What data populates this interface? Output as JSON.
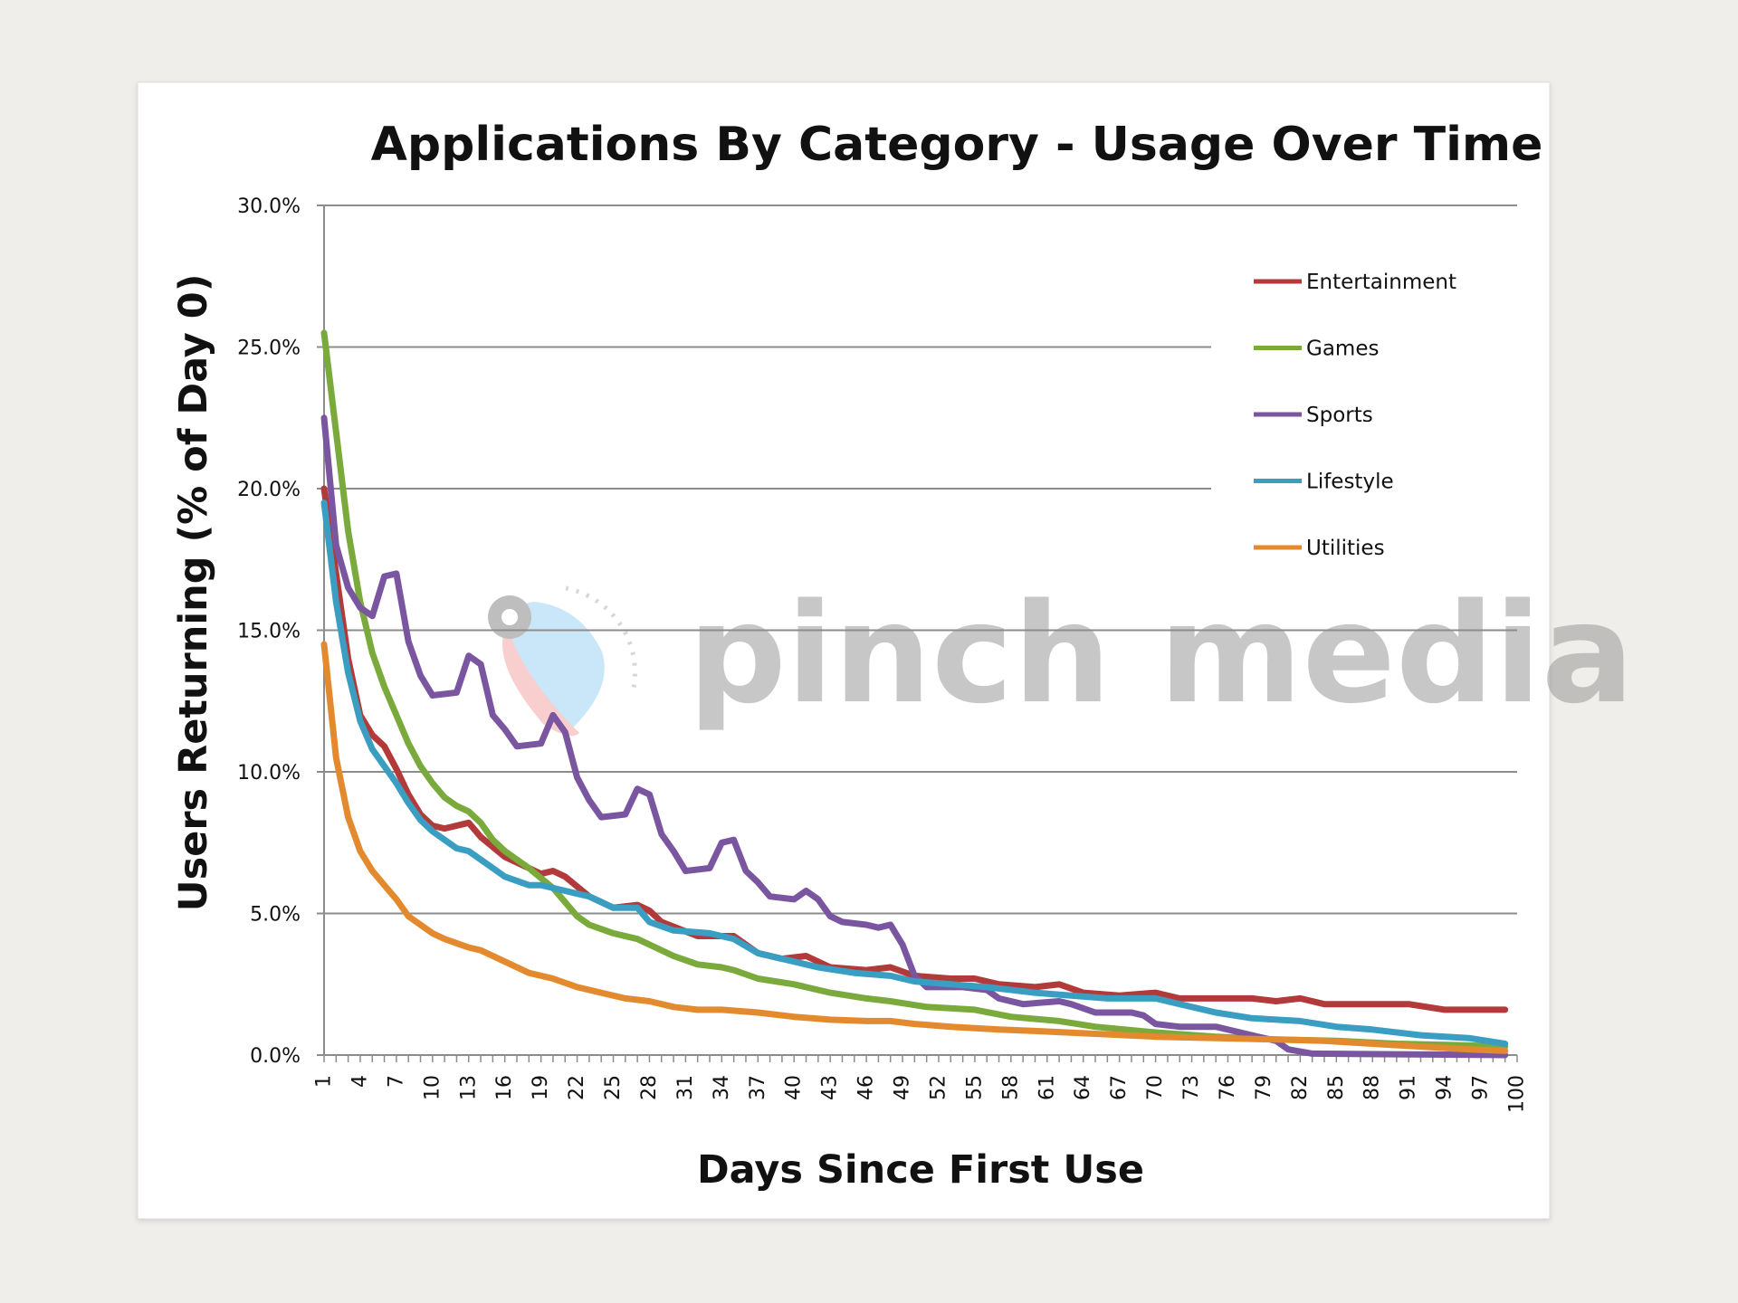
{
  "chart_data": {
    "type": "line",
    "title": "Applications By Category - Usage Over Time",
    "xlabel": "Days Since First Use",
    "ylabel": "Users Returning (% of Day 0)",
    "ylim": [
      0,
      30
    ],
    "yticks": [
      0,
      5,
      10,
      15,
      20,
      25,
      30
    ],
    "ytick_format": "percent_1dp",
    "xlim": [
      1,
      100
    ],
    "xtick_labels": [
      1,
      4,
      7,
      10,
      13,
      16,
      19,
      22,
      25,
      28,
      31,
      34,
      37,
      40,
      43,
      46,
      49,
      52,
      55,
      58,
      61,
      64,
      67,
      70,
      73,
      76,
      79,
      82,
      85,
      88,
      91,
      94,
      97,
      100
    ],
    "grid": true,
    "legend_position": "top-right",
    "watermark": "pinch media",
    "series": [
      {
        "name": "Entertainment",
        "color": "#b33a3a",
        "points": [
          [
            1,
            20
          ],
          [
            2,
            17
          ],
          [
            3,
            14
          ],
          [
            4,
            12
          ],
          [
            5,
            11.3
          ],
          [
            6,
            10.9
          ],
          [
            7,
            10.1
          ],
          [
            8,
            9.2
          ],
          [
            9,
            8.5
          ],
          [
            10,
            8.1
          ],
          [
            11,
            8
          ],
          [
            12,
            8.1
          ],
          [
            13,
            8.2
          ],
          [
            14,
            7.7
          ],
          [
            16,
            7
          ],
          [
            19,
            6.4
          ],
          [
            20,
            6.5
          ],
          [
            21,
            6.3
          ],
          [
            23,
            5.6
          ],
          [
            25,
            5.2
          ],
          [
            27,
            5.3
          ],
          [
            28,
            5.1
          ],
          [
            29,
            4.7
          ],
          [
            32,
            4.2
          ],
          [
            35,
            4.2
          ],
          [
            37,
            3.6
          ],
          [
            39,
            3.4
          ],
          [
            41,
            3.5
          ],
          [
            43,
            3.1
          ],
          [
            46,
            3
          ],
          [
            48,
            3.1
          ],
          [
            50,
            2.8
          ],
          [
            53,
            2.7
          ],
          [
            55,
            2.7
          ],
          [
            57,
            2.5
          ],
          [
            60,
            2.4
          ],
          [
            62,
            2.5
          ],
          [
            64,
            2.2
          ],
          [
            67,
            2.1
          ],
          [
            70,
            2.2
          ],
          [
            72,
            2
          ],
          [
            76,
            2
          ],
          [
            78,
            2
          ],
          [
            80,
            1.9
          ],
          [
            82,
            2
          ],
          [
            84,
            1.8
          ],
          [
            88,
            1.8
          ],
          [
            91,
            1.8
          ],
          [
            94,
            1.6
          ],
          [
            97,
            1.6
          ],
          [
            99,
            1.6
          ]
        ]
      },
      {
        "name": "Games",
        "color": "#7aaa3c",
        "points": [
          [
            1,
            25.5
          ],
          [
            2,
            22
          ],
          [
            3,
            18.5
          ],
          [
            4,
            16
          ],
          [
            5,
            14.2
          ],
          [
            6,
            13
          ],
          [
            7,
            12
          ],
          [
            8,
            11
          ],
          [
            9,
            10.2
          ],
          [
            10,
            9.6
          ],
          [
            11,
            9.1
          ],
          [
            12,
            8.8
          ],
          [
            13,
            8.6
          ],
          [
            14,
            8.2
          ],
          [
            15,
            7.6
          ],
          [
            16,
            7.2
          ],
          [
            18,
            6.6
          ],
          [
            20,
            5.9
          ],
          [
            21,
            5.4
          ],
          [
            22,
            4.9
          ],
          [
            23,
            4.6
          ],
          [
            25,
            4.3
          ],
          [
            27,
            4.1
          ],
          [
            28,
            3.9
          ],
          [
            30,
            3.5
          ],
          [
            32,
            3.2
          ],
          [
            34,
            3.1
          ],
          [
            35,
            3
          ],
          [
            37,
            2.7
          ],
          [
            40,
            2.5
          ],
          [
            43,
            2.2
          ],
          [
            46,
            2
          ],
          [
            48,
            1.9
          ],
          [
            51,
            1.7
          ],
          [
            55,
            1.6
          ],
          [
            58,
            1.35
          ],
          [
            62,
            1.2
          ],
          [
            65,
            1
          ],
          [
            70,
            0.8
          ],
          [
            75,
            0.65
          ],
          [
            80,
            0.55
          ],
          [
            85,
            0.5
          ],
          [
            90,
            0.4
          ],
          [
            95,
            0.35
          ],
          [
            99,
            0.3
          ]
        ]
      },
      {
        "name": "Sports",
        "color": "#7a55a0",
        "points": [
          [
            1,
            22.5
          ],
          [
            2,
            18
          ],
          [
            3,
            16.5
          ],
          [
            4,
            15.8
          ],
          [
            5,
            15.5
          ],
          [
            6,
            16.9
          ],
          [
            7,
            17
          ],
          [
            8,
            14.6
          ],
          [
            9,
            13.4
          ],
          [
            10,
            12.7
          ],
          [
            12,
            12.8
          ],
          [
            13,
            14.1
          ],
          [
            14,
            13.8
          ],
          [
            15,
            12
          ],
          [
            16,
            11.5
          ],
          [
            17,
            10.9
          ],
          [
            19,
            11
          ],
          [
            20,
            12
          ],
          [
            21,
            11.4
          ],
          [
            22,
            9.8
          ],
          [
            23,
            9
          ],
          [
            24,
            8.4
          ],
          [
            26,
            8.5
          ],
          [
            27,
            9.4
          ],
          [
            28,
            9.2
          ],
          [
            29,
            7.8
          ],
          [
            30,
            7.2
          ],
          [
            31,
            6.5
          ],
          [
            33,
            6.6
          ],
          [
            34,
            7.5
          ],
          [
            35,
            7.6
          ],
          [
            36,
            6.5
          ],
          [
            37,
            6.1
          ],
          [
            38,
            5.6
          ],
          [
            40,
            5.5
          ],
          [
            41,
            5.8
          ],
          [
            42,
            5.5
          ],
          [
            43,
            4.9
          ],
          [
            44,
            4.7
          ],
          [
            46,
            4.6
          ],
          [
            47,
            4.5
          ],
          [
            48,
            4.6
          ],
          [
            49,
            3.9
          ],
          [
            50,
            2.8
          ],
          [
            51,
            2.4
          ],
          [
            53,
            2.4
          ],
          [
            54,
            2.4
          ],
          [
            56,
            2.3
          ],
          [
            57,
            2
          ],
          [
            59,
            1.8
          ],
          [
            62,
            1.9
          ],
          [
            63,
            1.8
          ],
          [
            65,
            1.5
          ],
          [
            68,
            1.5
          ],
          [
            69,
            1.4
          ],
          [
            70,
            1.1
          ],
          [
            72,
            1
          ],
          [
            75,
            1
          ],
          [
            78,
            0.7
          ],
          [
            80,
            0.5
          ],
          [
            81,
            0.2
          ],
          [
            83,
            0.05
          ],
          [
            99,
            0
          ]
        ]
      },
      {
        "name": "Lifestyle",
        "color": "#3a9ec2",
        "points": [
          [
            1,
            19.5
          ],
          [
            2,
            16
          ],
          [
            3,
            13.5
          ],
          [
            4,
            11.8
          ],
          [
            5,
            10.8
          ],
          [
            6,
            10.2
          ],
          [
            7,
            9.6
          ],
          [
            8,
            8.9
          ],
          [
            9,
            8.3
          ],
          [
            10,
            7.9
          ],
          [
            11,
            7.6
          ],
          [
            12,
            7.3
          ],
          [
            13,
            7.2
          ],
          [
            14,
            6.9
          ],
          [
            15,
            6.6
          ],
          [
            16,
            6.3
          ],
          [
            18,
            6
          ],
          [
            19,
            6
          ],
          [
            21,
            5.8
          ],
          [
            23,
            5.6
          ],
          [
            25,
            5.2
          ],
          [
            27,
            5.2
          ],
          [
            28,
            4.7
          ],
          [
            30,
            4.4
          ],
          [
            33,
            4.3
          ],
          [
            35,
            4.1
          ],
          [
            37,
            3.6
          ],
          [
            40,
            3.3
          ],
          [
            42,
            3.1
          ],
          [
            45,
            2.9
          ],
          [
            48,
            2.8
          ],
          [
            50,
            2.6
          ],
          [
            53,
            2.5
          ],
          [
            56,
            2.4
          ],
          [
            60,
            2.2
          ],
          [
            63,
            2.1
          ],
          [
            66,
            2
          ],
          [
            70,
            2
          ],
          [
            72,
            1.8
          ],
          [
            75,
            1.5
          ],
          [
            78,
            1.3
          ],
          [
            82,
            1.2
          ],
          [
            85,
            1
          ],
          [
            88,
            0.9
          ],
          [
            92,
            0.7
          ],
          [
            96,
            0.6
          ],
          [
            99,
            0.4
          ]
        ]
      },
      {
        "name": "Utilities",
        "color": "#e38a2e",
        "points": [
          [
            1,
            14.5
          ],
          [
            2,
            10.5
          ],
          [
            3,
            8.4
          ],
          [
            4,
            7.2
          ],
          [
            5,
            6.5
          ],
          [
            6,
            6
          ],
          [
            7,
            5.5
          ],
          [
            8,
            4.9
          ],
          [
            9,
            4.6
          ],
          [
            10,
            4.3
          ],
          [
            11,
            4.1
          ],
          [
            13,
            3.8
          ],
          [
            14,
            3.7
          ],
          [
            16,
            3.3
          ],
          [
            18,
            2.9
          ],
          [
            20,
            2.7
          ],
          [
            22,
            2.4
          ],
          [
            24,
            2.2
          ],
          [
            26,
            2
          ],
          [
            28,
            1.9
          ],
          [
            30,
            1.7
          ],
          [
            32,
            1.6
          ],
          [
            34,
            1.6
          ],
          [
            37,
            1.5
          ],
          [
            40,
            1.35
          ],
          [
            43,
            1.25
          ],
          [
            46,
            1.2
          ],
          [
            48,
            1.2
          ],
          [
            50,
            1.1
          ],
          [
            53,
            1
          ],
          [
            57,
            0.9
          ],
          [
            60,
            0.85
          ],
          [
            65,
            0.75
          ],
          [
            70,
            0.65
          ],
          [
            75,
            0.6
          ],
          [
            80,
            0.55
          ],
          [
            84,
            0.5
          ],
          [
            88,
            0.4
          ],
          [
            92,
            0.3
          ],
          [
            96,
            0.2
          ],
          [
            99,
            0.15
          ]
        ]
      }
    ]
  }
}
